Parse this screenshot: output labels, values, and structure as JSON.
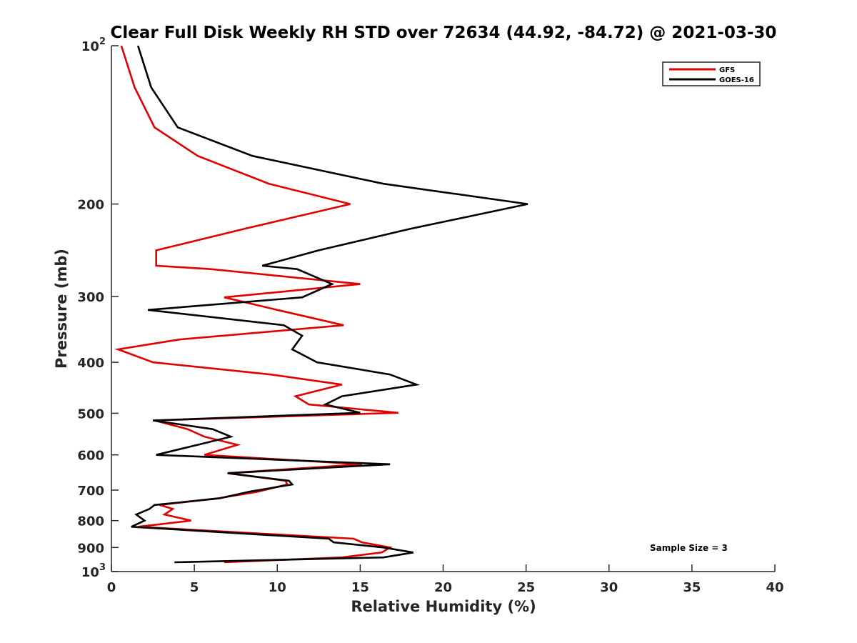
{
  "chart_data": {
    "type": "line",
    "title": "Clear Full Disk Weekly RH STD over 72634 (44.92, -84.72) @ 2021-03-30",
    "xlabel": "Relative Humidity (%)",
    "ylabel": "Pressure (mb)",
    "xlim": [
      0,
      40
    ],
    "ylim": [
      100,
      1000
    ],
    "yscale": "log",
    "y_reversed": true,
    "xticks": [
      0,
      5,
      10,
      15,
      20,
      25,
      30,
      35,
      40
    ],
    "yticks": [
      {
        "value": 100,
        "base": "10",
        "exp": "2"
      },
      {
        "value": 200,
        "label": "200"
      },
      {
        "value": 300,
        "label": "300"
      },
      {
        "value": 400,
        "label": "400"
      },
      {
        "value": 500,
        "label": "500"
      },
      {
        "value": 600,
        "label": "600"
      },
      {
        "value": 700,
        "label": "700"
      },
      {
        "value": 800,
        "label": "800"
      },
      {
        "value": 900,
        "label": "900"
      },
      {
        "value": 1000,
        "base": "10",
        "exp": "3"
      }
    ],
    "legend_position": "top-right",
    "annotation": "Sample Size = 3",
    "series": [
      {
        "name": "GFS",
        "color": "#e00000",
        "points": [
          [
            0.6,
            100
          ],
          [
            1.4,
            120
          ],
          [
            2.6,
            143
          ],
          [
            5.2,
            162
          ],
          [
            9.5,
            183
          ],
          [
            14.4,
            200
          ],
          [
            8.0,
            223
          ],
          [
            2.7,
            245
          ],
          [
            2.7,
            262
          ],
          [
            6.0,
            266
          ],
          [
            15.0,
            284
          ],
          [
            6.8,
            301
          ],
          [
            10.0,
            318
          ],
          [
            14.0,
            340
          ],
          [
            4.1,
            362
          ],
          [
            0.4,
            378
          ],
          [
            2.5,
            400
          ],
          [
            9.6,
            422
          ],
          [
            13.9,
            441
          ],
          [
            11.1,
            464
          ],
          [
            11.9,
            481
          ],
          [
            17.3,
            499
          ],
          [
            2.6,
            516
          ],
          [
            4.6,
            536
          ],
          [
            5.6,
            554
          ],
          [
            7.6,
            574
          ],
          [
            5.6,
            600
          ],
          [
            15.1,
            625
          ],
          [
            7.0,
            650
          ],
          [
            10.5,
            672
          ],
          [
            10.6,
            683
          ],
          [
            8.8,
            705
          ],
          [
            6.4,
            726
          ],
          [
            2.9,
            747
          ],
          [
            3.7,
            760
          ],
          [
            3.2,
            779
          ],
          [
            4.8,
            800
          ],
          [
            1.6,
            822
          ],
          [
            14.6,
            866
          ],
          [
            15.1,
            880
          ],
          [
            16.8,
            900
          ],
          [
            16.3,
            920
          ],
          [
            13.9,
            940
          ],
          [
            6.8,
            960
          ]
        ]
      },
      {
        "name": "GOES-16",
        "color": "#000000",
        "points": [
          [
            1.6,
            100
          ],
          [
            2.4,
            120
          ],
          [
            4.0,
            143
          ],
          [
            8.5,
            162
          ],
          [
            16.4,
            183
          ],
          [
            25.1,
            200
          ],
          [
            18.0,
            223
          ],
          [
            12.5,
            245
          ],
          [
            9.1,
            262
          ],
          [
            11.2,
            266
          ],
          [
            13.3,
            284
          ],
          [
            11.5,
            301
          ],
          [
            2.2,
            318
          ],
          [
            10.4,
            340
          ],
          [
            11.5,
            356
          ],
          [
            10.9,
            378
          ],
          [
            12.4,
            400
          ],
          [
            16.8,
            422
          ],
          [
            18.4,
            441
          ],
          [
            13.9,
            464
          ],
          [
            12.9,
            481
          ],
          [
            15.0,
            499
          ],
          [
            2.5,
            516
          ],
          [
            6.1,
            536
          ],
          [
            7.2,
            554
          ],
          [
            5.2,
            574
          ],
          [
            2.7,
            600
          ],
          [
            16.8,
            625
          ],
          [
            7.0,
            650
          ],
          [
            10.7,
            672
          ],
          [
            10.9,
            683
          ],
          [
            8.3,
            705
          ],
          [
            6.5,
            726
          ],
          [
            2.6,
            747
          ],
          [
            2.3,
            760
          ],
          [
            1.5,
            779
          ],
          [
            2.0,
            800
          ],
          [
            1.2,
            822
          ],
          [
            13.1,
            866
          ],
          [
            13.4,
            880
          ],
          [
            16.4,
            900
          ],
          [
            18.2,
            920
          ],
          [
            16.4,
            940
          ],
          [
            3.8,
            960
          ]
        ]
      }
    ]
  }
}
